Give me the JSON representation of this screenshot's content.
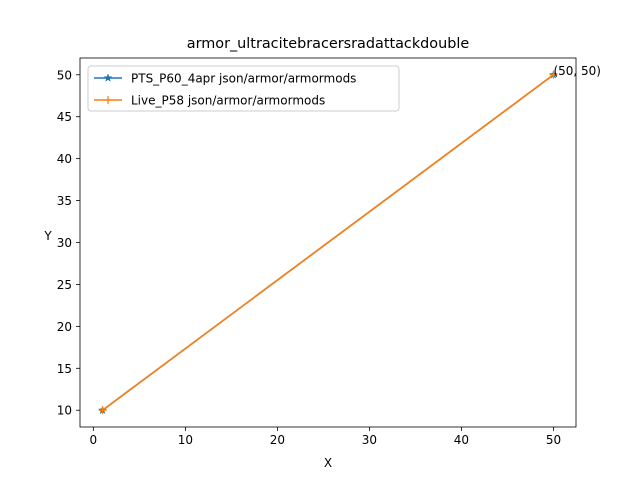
{
  "chart_data": {
    "type": "line",
    "title": "armor_ultracitebracersradattackdouble",
    "xlabel": "X",
    "ylabel": "Y",
    "xlim": [
      -1.45,
      52.45
    ],
    "ylim": [
      8.0,
      52.0
    ],
    "xticks": [
      0,
      10,
      20,
      30,
      40,
      50
    ],
    "yticks": [
      10,
      15,
      20,
      25,
      30,
      35,
      40,
      45,
      50
    ],
    "grid": false,
    "legend_position": "top-left",
    "series": [
      {
        "name": "PTS_P60_4apr json/armor/armormods",
        "color": "#1f77b4",
        "marker": "star",
        "x": [
          1,
          50
        ],
        "y": [
          10,
          50
        ]
      },
      {
        "name": "Live_P58 json/armor/armormods",
        "color": "#ff7f0e",
        "marker": "plus",
        "x": [
          1,
          50
        ],
        "y": [
          10,
          50
        ]
      }
    ],
    "annotations": [
      {
        "text": "(50, 50)",
        "x": 50,
        "y": 50
      }
    ]
  }
}
